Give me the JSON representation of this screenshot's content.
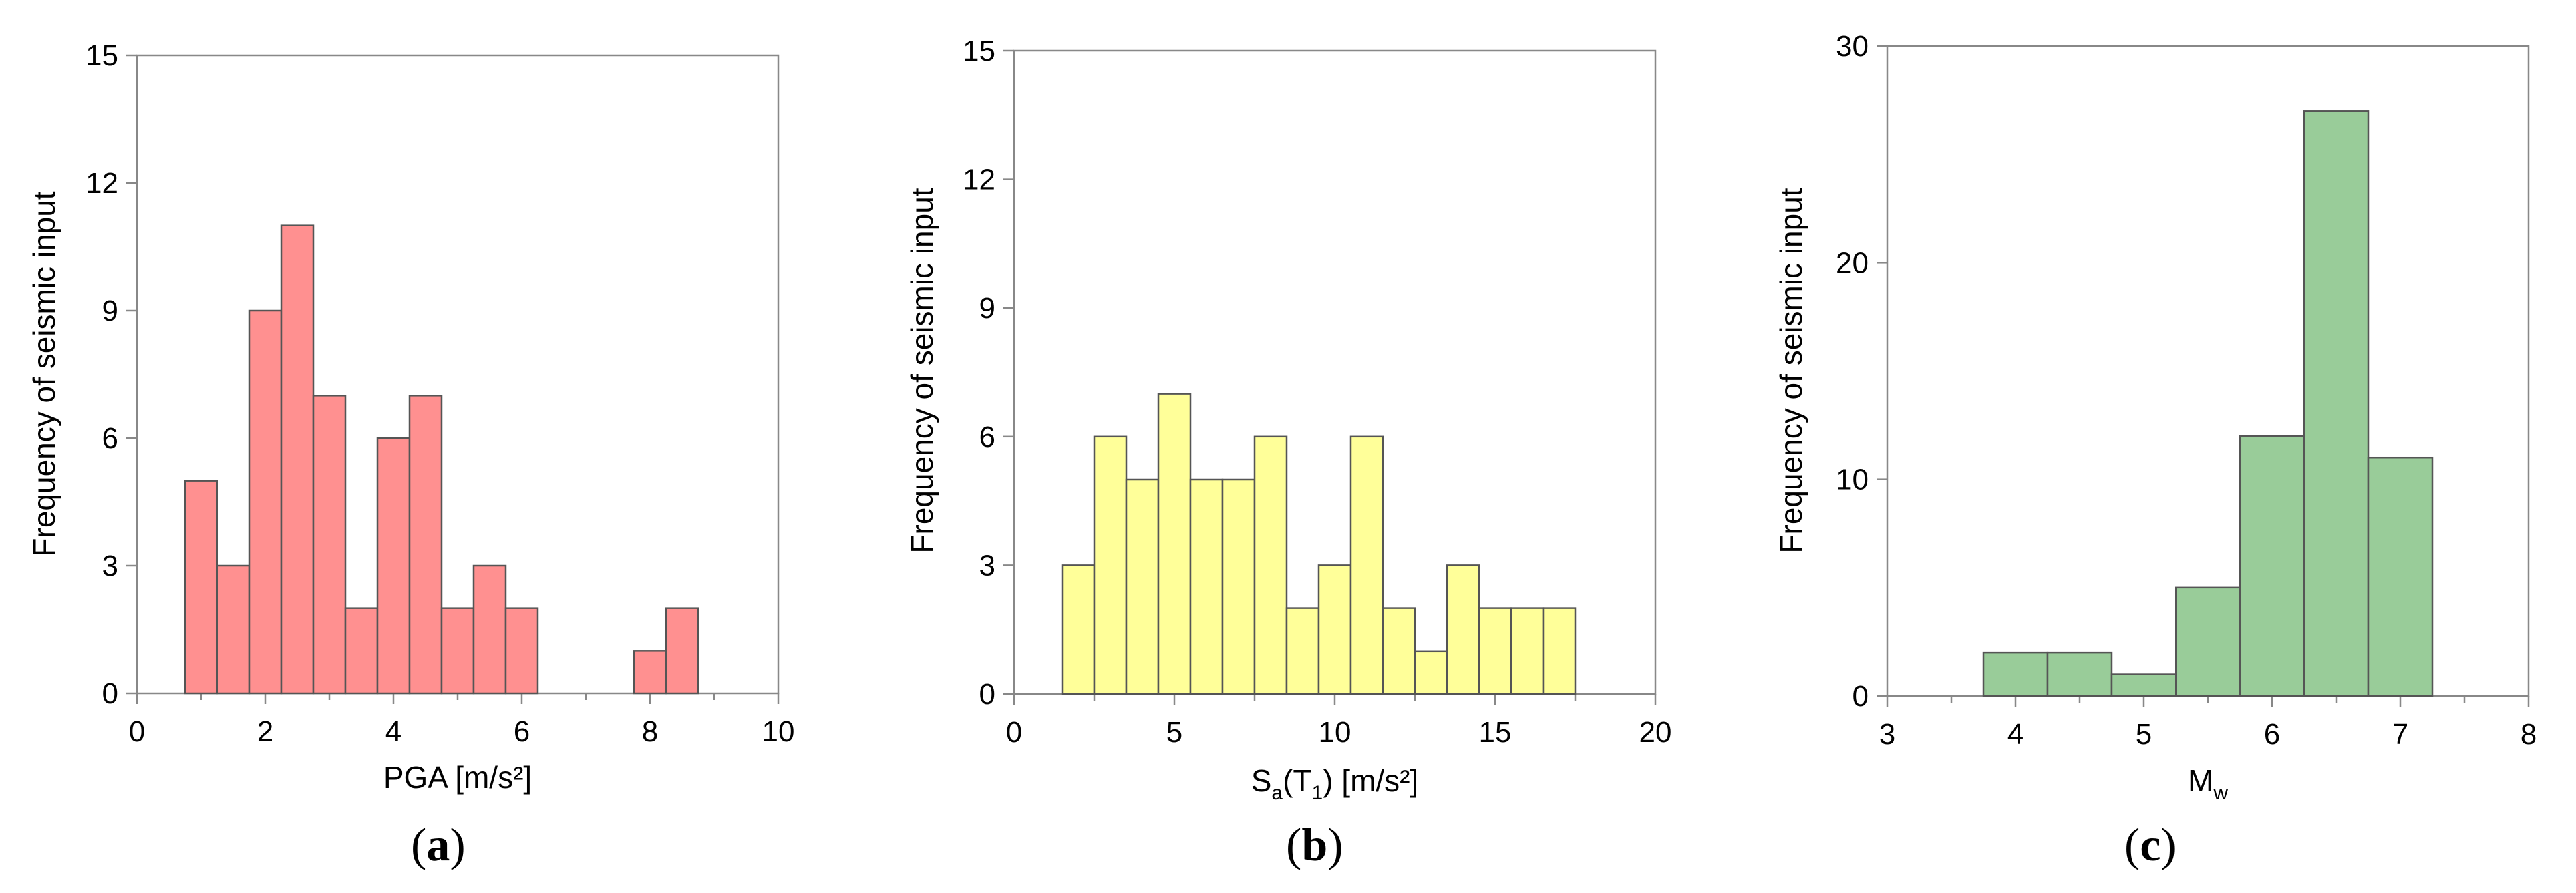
{
  "chart_data": [
    {
      "type": "bar",
      "histogram": true,
      "panel_label": "a",
      "xlabel": "PGA [m/s²]",
      "ylabel": "Frequency of seismic input",
      "xlim": [
        0,
        10
      ],
      "ylim": [
        0,
        15
      ],
      "xticks": [
        0,
        2,
        4,
        6,
        8,
        10
      ],
      "yticks": [
        0,
        3,
        6,
        9,
        12,
        15
      ],
      "bin_width": 0.5,
      "bin_start": [
        0.75,
        1.25,
        1.75,
        2.25,
        2.75,
        3.25,
        3.75,
        4.25,
        4.75,
        5.25,
        5.75,
        7.75,
        8.25
      ],
      "values": [
        5,
        3,
        9,
        11,
        7,
        2,
        6,
        7,
        2,
        3,
        2,
        1,
        2
      ],
      "color": "#ff9090"
    },
    {
      "type": "bar",
      "histogram": true,
      "panel_label": "b",
      "xlabel_main": "S",
      "xlabel_sub1": "a",
      "xlabel_mid": "(T",
      "xlabel_sub2": "1",
      "xlabel_end": ") [m/s²]",
      "ylabel": "Frequency of seismic input",
      "xlim": [
        0,
        20
      ],
      "ylim": [
        0,
        15
      ],
      "xticks": [
        0,
        5,
        10,
        15,
        20
      ],
      "yticks": [
        0,
        3,
        6,
        9,
        12,
        15
      ],
      "bin_width": 1,
      "bin_start": [
        0.5,
        1.5,
        2.5,
        3.5,
        4.5,
        5.5,
        6.5,
        7.5,
        8.5,
        9.5,
        10.5,
        11.5,
        12.5,
        13.5,
        14.5,
        15.5,
        16.5
      ],
      "values": [
        0,
        3,
        6,
        5,
        7,
        5,
        5,
        6,
        2,
        3,
        6,
        2,
        1,
        3,
        2,
        2,
        2
      ],
      "color": "#ffff99"
    },
    {
      "type": "bar",
      "histogram": true,
      "panel_label": "c",
      "xlabel_main": "M",
      "xlabel_sub": "w",
      "ylabel": "Frequency of seismic input",
      "xlim": [
        3,
        8
      ],
      "ylim": [
        0,
        30
      ],
      "xticks": [
        3,
        4,
        5,
        6,
        7,
        8
      ],
      "yticks": [
        0,
        10,
        20,
        30
      ],
      "bin_width": 0.5,
      "bin_start": [
        3.75,
        4.25,
        4.75,
        5.25,
        5.75,
        6.25,
        6.75
      ],
      "values": [
        2,
        2,
        1,
        5,
        12,
        27,
        11
      ],
      "color": "#99cc99"
    }
  ]
}
